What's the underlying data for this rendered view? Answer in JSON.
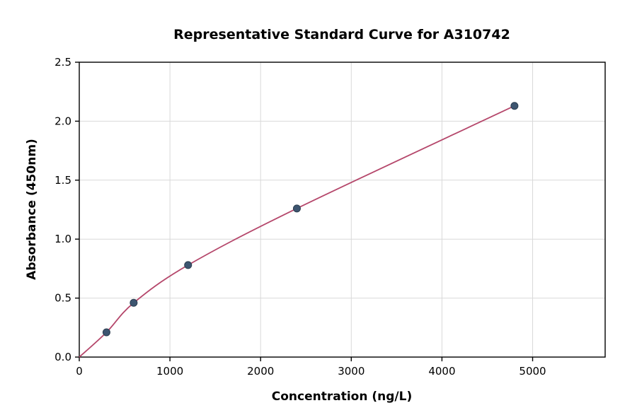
{
  "chart_data": {
    "type": "scatter",
    "title": "Representative Standard Curve for A310742",
    "xlabel": "Concentration (ng/L)",
    "ylabel": "Absorbance (450nm)",
    "xlim": [
      0,
      5800
    ],
    "ylim": [
      0,
      2.5
    ],
    "grid": true,
    "xticks": [
      0,
      1000,
      2000,
      3000,
      4000,
      5000
    ],
    "xtick_labels": [
      "0",
      "1000",
      "2000",
      "3000",
      "4000",
      "5000"
    ],
    "yticks": [
      0.0,
      0.5,
      1.0,
      1.5,
      2.0,
      2.5
    ],
    "ytick_labels": [
      "0.0",
      "0.5",
      "1.0",
      "1.5",
      "2.0",
      "2.5"
    ],
    "points": [
      {
        "x": 300,
        "y": 0.21
      },
      {
        "x": 600,
        "y": 0.46
      },
      {
        "x": 1200,
        "y": 0.78
      },
      {
        "x": 2400,
        "y": 1.26
      },
      {
        "x": 4800,
        "y": 2.13
      }
    ],
    "curve": {
      "description": "fitted standard curve from origin through data points",
      "start": {
        "x": 0,
        "y": 0.0
      }
    },
    "colors": {
      "curve": "#b5476b",
      "point": "#3d5570",
      "point_edge": "#2c3e50",
      "grid": "#d9d9d9",
      "axis": "#000000",
      "background": "#ffffff"
    }
  }
}
